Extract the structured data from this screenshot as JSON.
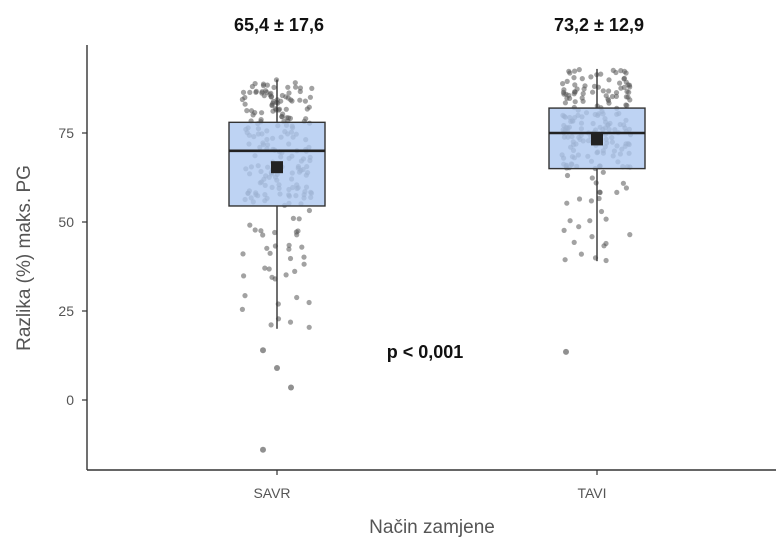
{
  "chart_data": {
    "type": "box",
    "xlabel": "Način zamjene",
    "ylabel": "Razlika (%) maks. PG",
    "ylim": [
      -18,
      98
    ],
    "yticks": [
      0,
      25,
      50,
      75
    ],
    "categories": [
      "SAVR",
      "TAVI"
    ],
    "boxes": [
      {
        "category": "SAVR",
        "q1": 54.5,
        "median": 70,
        "q3": 78,
        "whisker_low": 20,
        "whisker_high": 90,
        "mean": 65.4,
        "sd": 17.6,
        "label": "65,4 ± 17,6"
      },
      {
        "category": "TAVI",
        "q1": 65,
        "median": 75,
        "q3": 82,
        "whisker_low": 39,
        "whisker_high": 93,
        "mean": 73.2,
        "sd": 12.9,
        "label": "73,2 ± 12,9"
      }
    ],
    "outliers": [
      {
        "category": "SAVR",
        "values": [
          14,
          9,
          3.5,
          -14
        ]
      },
      {
        "category": "TAVI",
        "values": [
          13.5
        ]
      }
    ],
    "annotation": "p < 0,001",
    "grid": false,
    "legend": "none",
    "colors": {
      "box_fill": "#aec8f0",
      "box_stroke": "#333333",
      "point": "#555555",
      "mean_marker": "#222222",
      "axis": "#333333"
    }
  }
}
